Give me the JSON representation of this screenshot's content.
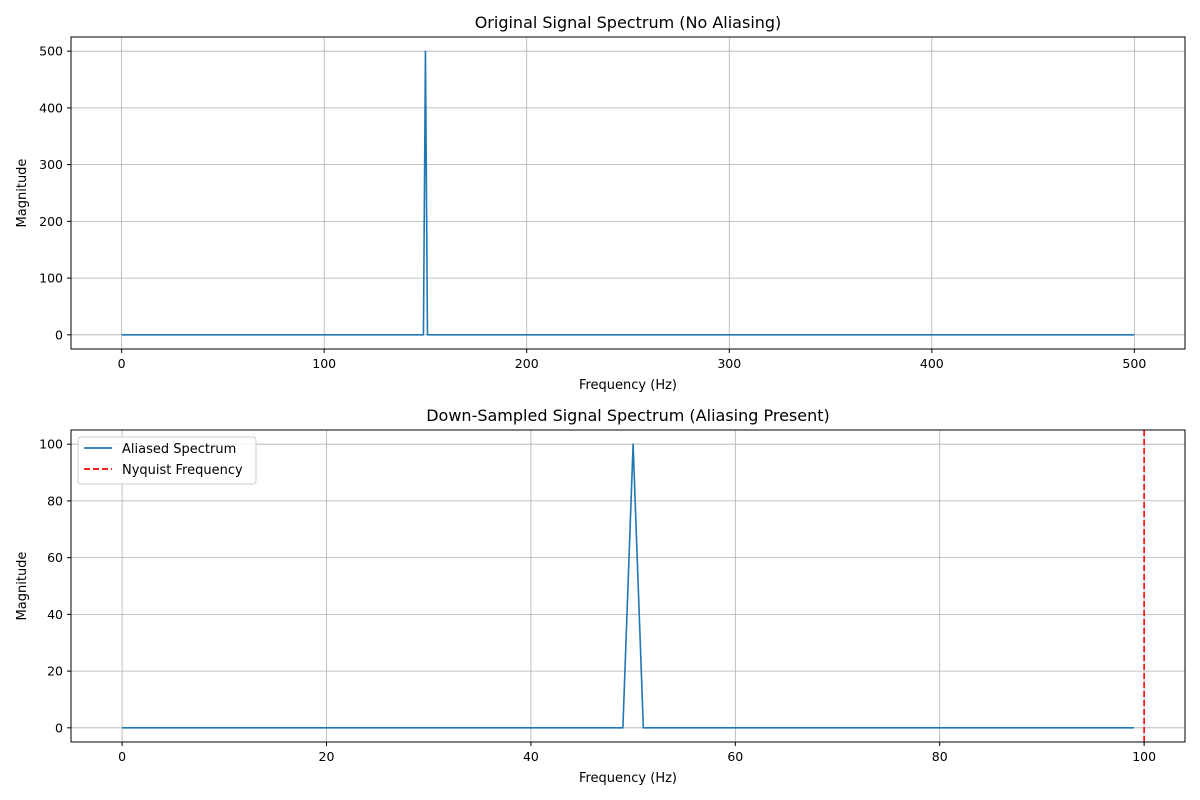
{
  "chart_data": [
    {
      "type": "line",
      "title": "Original Signal Spectrum (No Aliasing)",
      "xlabel": "Frequency (Hz)",
      "ylabel": "Magnitude",
      "xlim": [
        -25,
        525
      ],
      "ylim": [
        -25,
        525
      ],
      "xticks": [
        0,
        100,
        200,
        300,
        400,
        500
      ],
      "yticks": [
        0,
        100,
        200,
        300,
        400,
        500
      ],
      "grid": true,
      "legend": null,
      "series": [
        {
          "color": "#1f77b4",
          "style": "solid",
          "x": [
            0,
            149,
            150,
            151,
            500
          ],
          "y": [
            0,
            0,
            500,
            0,
            0
          ]
        }
      ]
    },
    {
      "type": "line",
      "title": "Down-Sampled Signal Spectrum (Aliasing Present)",
      "xlabel": "Frequency (Hz)",
      "ylabel": "Magnitude",
      "xlim": [
        -5,
        104
      ],
      "ylim": [
        -5,
        105
      ],
      "xticks": [
        0,
        20,
        40,
        60,
        80,
        100
      ],
      "yticks": [
        0,
        20,
        40,
        60,
        80,
        100
      ],
      "grid": true,
      "legend": "upper-left",
      "series": [
        {
          "name": "Aliased Spectrum",
          "color": "#1f77b4",
          "style": "solid",
          "x": [
            0,
            49,
            50,
            51,
            99
          ],
          "y": [
            0,
            0,
            100,
            0,
            0
          ]
        }
      ],
      "vlines": [
        {
          "name": "Nyquist Frequency",
          "x": 100,
          "color": "#ff0000",
          "style": "dashed"
        }
      ]
    }
  ]
}
